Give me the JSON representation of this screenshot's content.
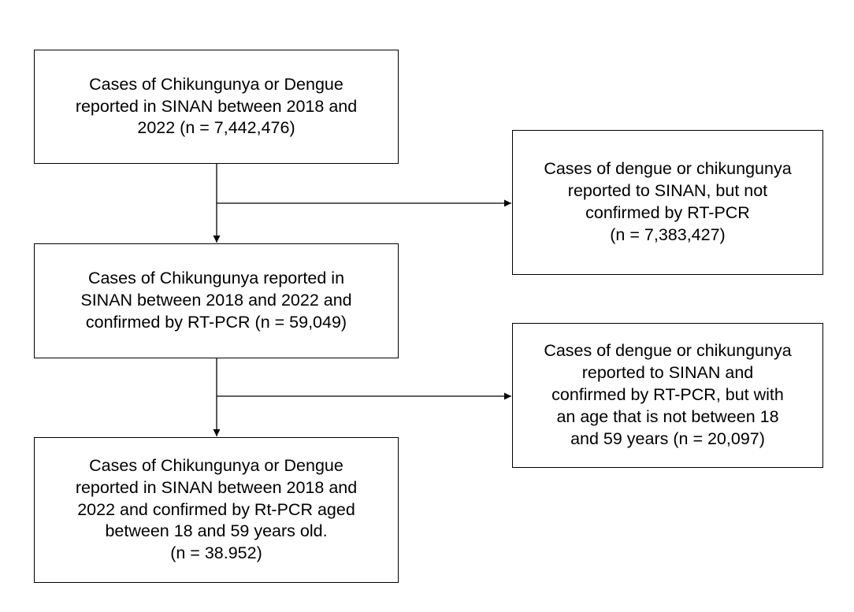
{
  "boxes": {
    "total": {
      "lines": [
        "Cases of Chikungunya or Dengue",
        "reported in SINAN between 2018 and",
        "2022 (n = 7,442,476)"
      ]
    },
    "confirmed": {
      "lines": [
        "Cases of Chikungunya reported in",
        "SINAN between 2018 and 2022 and",
        "confirmed by RT-PCR (n = 59,049)"
      ]
    },
    "final": {
      "lines": [
        "Cases of Chikungunya or Dengue",
        "reported in SINAN between 2018 and",
        "2022 and confirmed by Rt-PCR aged",
        "between 18 and 59 years old.",
        "(n = 38.952)"
      ]
    },
    "excluded_not_confirmed": {
      "lines": [
        "Cases of dengue or chikungunya",
        "reported to SINAN, but not",
        "confirmed by RT-PCR",
        "(n = 7,383,427)"
      ]
    },
    "excluded_age": {
      "lines": [
        "Cases of dengue or chikungunya",
        "reported to SINAN and",
        "confirmed by RT-PCR, but with",
        "an age that is not between 18",
        "and 59 years (n = 20,097)"
      ]
    }
  },
  "colors": {
    "stroke": "#000000",
    "background": "#ffffff"
  }
}
